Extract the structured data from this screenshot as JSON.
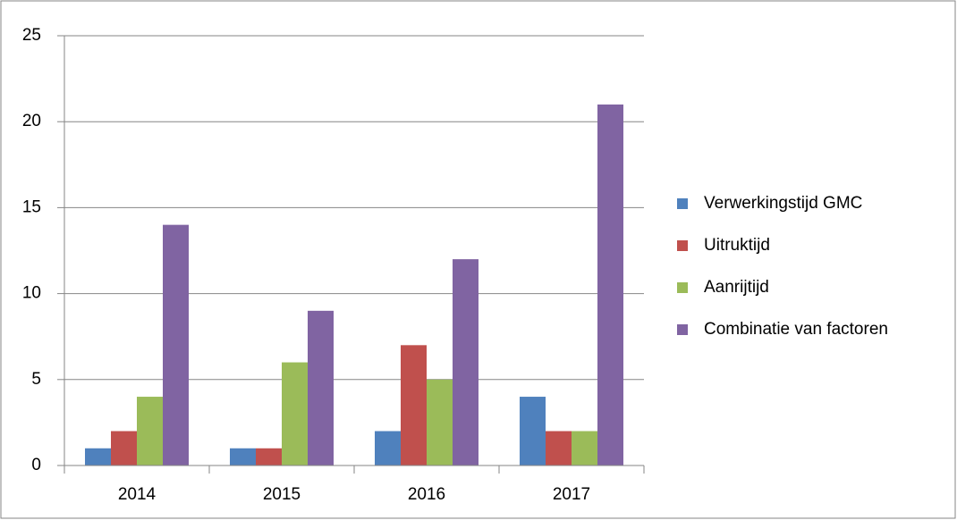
{
  "chart_data": {
    "type": "bar",
    "categories": [
      "2014",
      "2015",
      "2016",
      "2017"
    ],
    "series": [
      {
        "name": "Verwerkingstijd GMC",
        "color": "#4f81bd",
        "values": [
          1,
          1,
          2,
          4
        ]
      },
      {
        "name": "Uitruktijd",
        "color": "#c0504d",
        "values": [
          2,
          1,
          7,
          2
        ]
      },
      {
        "name": "Aanrijtijd",
        "color": "#9bbb59",
        "values": [
          4,
          6,
          5,
          2
        ]
      },
      {
        "name": "Combinatie van factoren",
        "color": "#8064a2",
        "values": [
          14,
          9,
          12,
          21
        ]
      }
    ],
    "ylim": [
      0,
      25
    ],
    "yticks": [
      0,
      5,
      10,
      15,
      20,
      25
    ],
    "grid": true,
    "legend": "right"
  }
}
